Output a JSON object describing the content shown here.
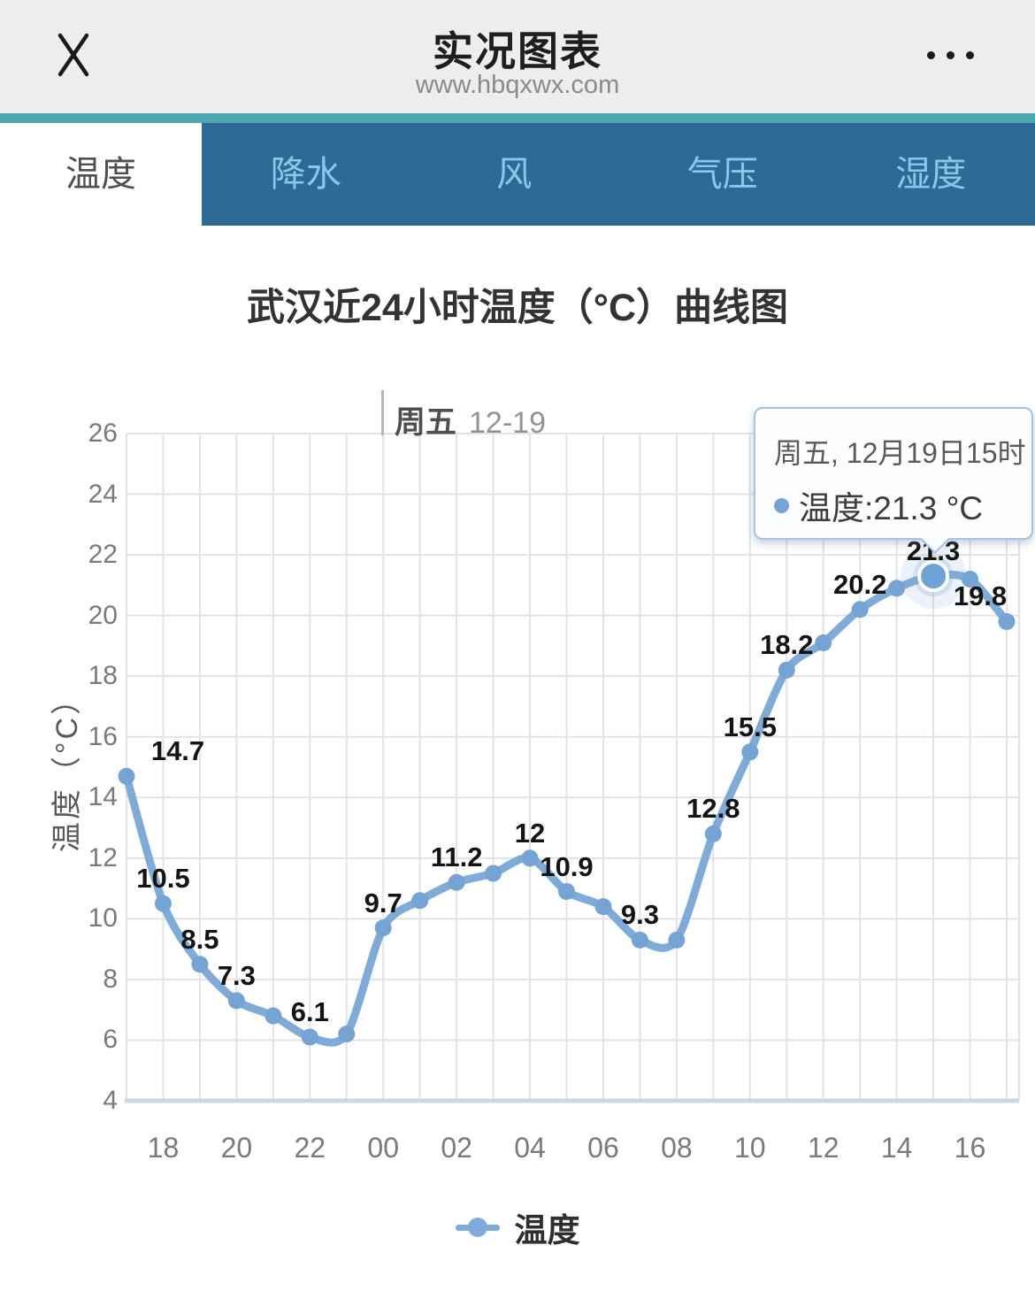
{
  "header": {
    "title": "实况图表",
    "url": "www.hbqxwx.com"
  },
  "icons": {
    "close": "✕",
    "menu": "•••"
  },
  "tabs": {
    "items": [
      {
        "label": "温度",
        "active": true
      },
      {
        "label": "降水",
        "active": false
      },
      {
        "label": "风",
        "active": false
      },
      {
        "label": "气压",
        "active": false
      },
      {
        "label": "湿度",
        "active": false
      }
    ]
  },
  "day_marker": {
    "day": "周五",
    "date": "12-19"
  },
  "tooltip": {
    "header": "周五, 12月19日15时",
    "body": "温度:21.3 °C"
  },
  "legend": {
    "label": "温度"
  },
  "colors": {
    "accent_teal": "#4BA7B0",
    "tab_blue": "#2D6A96",
    "tab_inactive_text": "#8CC6E8",
    "line_blue": "#7FABD9",
    "marker_blue": "#74A3D4",
    "highlight_blue": "#6FA2D6",
    "grid": "#E3E3E3",
    "axis_line": "#CDD8E2",
    "axis_text": "#7A7A7A",
    "tooltip_border": "#A5C2E2"
  },
  "chart_data": {
    "type": "line",
    "title": "武汉近24小时温度（°C）曲线图",
    "series_name": "温度",
    "xlabel": "",
    "ylabel": "温度（°C）",
    "ylim": [
      4,
      26
    ],
    "ytick_step": 2,
    "grid": true,
    "smooth": true,
    "legend_position": "bottom",
    "x_hours": [
      "17",
      "18",
      "19",
      "20",
      "21",
      "22",
      "23",
      "00",
      "01",
      "02",
      "03",
      "04",
      "05",
      "06",
      "07",
      "08",
      "09",
      "10",
      "11",
      "12",
      "13",
      "14",
      "15",
      "16",
      "17"
    ],
    "values": [
      14.7,
      10.5,
      8.5,
      7.3,
      6.8,
      6.1,
      6.2,
      9.7,
      10.6,
      11.2,
      11.5,
      12,
      10.9,
      10.4,
      9.3,
      9.3,
      12.8,
      15.5,
      18.2,
      19.1,
      20.2,
      20.9,
      21.3,
      21.2,
      19.8
    ],
    "point_labels": [
      "14.7",
      "10.5",
      "8.5",
      "7.3",
      null,
      "6.1",
      null,
      "9.7",
      null,
      "11.2",
      null,
      "12",
      "10.9",
      null,
      "9.3",
      null,
      "12.8",
      "15.5",
      "18.2",
      null,
      "20.2",
      null,
      "21.3",
      null,
      "19.8"
    ],
    "xtick_labels": [
      "18",
      "20",
      "22",
      "00",
      "02",
      "04",
      "06",
      "08",
      "10",
      "12",
      "14",
      "16"
    ],
    "xtick_indices": [
      1,
      3,
      5,
      7,
      9,
      11,
      13,
      15,
      17,
      19,
      21,
      23
    ],
    "highlight_index": 22,
    "highlight_value": 21.3,
    "label_offsets": {
      "0": [
        58,
        0
      ],
      "24": [
        -30,
        0
      ]
    }
  }
}
